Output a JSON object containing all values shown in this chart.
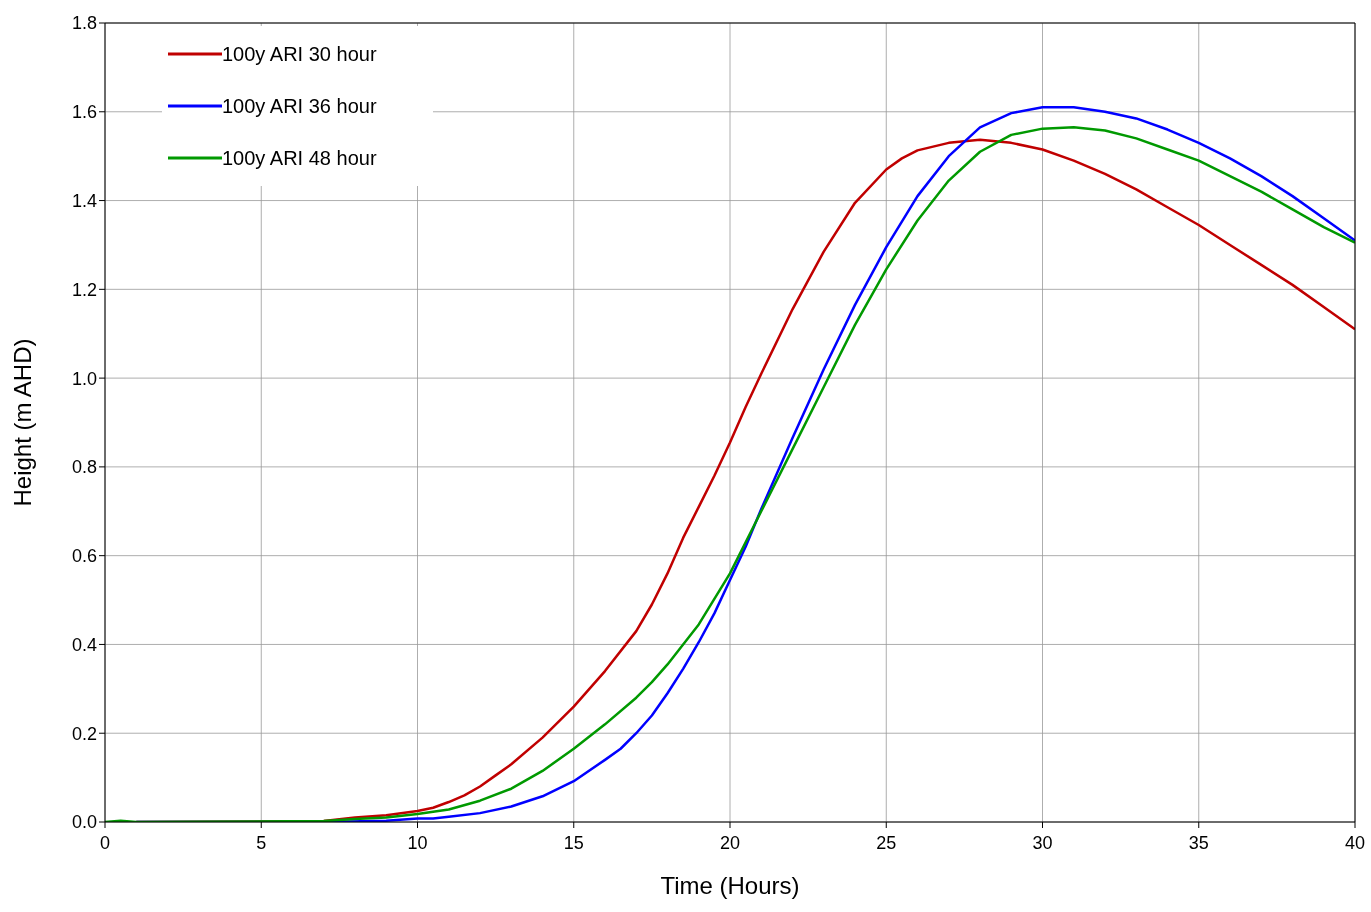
{
  "chart_data": {
    "type": "line",
    "xlabel": "Time (Hours)",
    "ylabel": "Height (m AHD)",
    "xlim": [
      0,
      40
    ],
    "xticks": [
      0,
      5,
      10,
      15,
      20,
      25,
      30,
      35,
      40
    ],
    "ylim": [
      0,
      1.8
    ],
    "yticks": [
      {
        "value": 0,
        "label": "0.0"
      },
      {
        "value": 0.2,
        "label": "0.2"
      },
      {
        "value": 0.4,
        "label": "0.4"
      },
      {
        "value": 0.6,
        "label": "0.6"
      },
      {
        "value": 0.8,
        "label": "0.8"
      },
      {
        "value": 1.0,
        "label": "1.0"
      },
      {
        "value": 1.2,
        "label": "1.2"
      },
      {
        "value": 1.4,
        "label": "1.4"
      },
      {
        "value": 1.6,
        "label": "1.6"
      },
      {
        "value": 1.8,
        "label": "1.8"
      }
    ],
    "grid": true,
    "legend": "top left",
    "marker": "none",
    "line_style": "solid",
    "series": [
      {
        "name": "100y ARI 30 hour",
        "color": "#c00000",
        "x": [
          1,
          7,
          8,
          9,
          10,
          10.5,
          11,
          11.5,
          12,
          12.5,
          13,
          14,
          15,
          16,
          17,
          17.5,
          18,
          18.5,
          19,
          19.5,
          20,
          20.5,
          21,
          22,
          23,
          24,
          25,
          25.5,
          26,
          27,
          28,
          29,
          30,
          31,
          32,
          33,
          34,
          35,
          36,
          37,
          38,
          39,
          40
        ],
        "values": [
          0,
          0.002,
          0.01,
          0.015,
          0.025,
          0.032,
          0.045,
          0.06,
          0.08,
          0.105,
          0.13,
          0.19,
          0.26,
          0.34,
          0.43,
          0.49,
          0.56,
          0.64,
          0.71,
          0.78,
          0.855,
          0.935,
          1.01,
          1.155,
          1.285,
          1.395,
          1.47,
          1.495,
          1.513,
          1.53,
          1.537,
          1.53,
          1.515,
          1.49,
          1.46,
          1.425,
          1.385,
          1.345,
          1.3,
          1.255,
          1.21,
          1.16,
          1.11
        ]
      },
      {
        "name": "100y ARI 36 hour",
        "color": "#0000ff",
        "x": [
          1,
          7,
          9,
          10,
          10.5,
          11,
          12,
          13,
          14,
          15,
          16,
          16.5,
          17,
          17.5,
          18,
          18.5,
          19,
          19.5,
          20,
          20.5,
          21,
          22,
          23,
          24,
          25,
          26,
          27,
          28,
          29,
          30,
          31,
          32,
          33,
          34,
          35,
          36,
          37,
          38,
          39,
          40
        ],
        "values": [
          0,
          0,
          0.003,
          0.008,
          0.008,
          0.012,
          0.02,
          0.035,
          0.058,
          0.092,
          0.14,
          0.165,
          0.2,
          0.24,
          0.29,
          0.345,
          0.405,
          0.47,
          0.545,
          0.62,
          0.705,
          0.865,
          1.02,
          1.165,
          1.295,
          1.41,
          1.5,
          1.565,
          1.597,
          1.61,
          1.61,
          1.6,
          1.585,
          1.56,
          1.53,
          1.495,
          1.455,
          1.41,
          1.36,
          1.31
        ]
      },
      {
        "name": "100y ARI 48 hour",
        "color": "#009900",
        "x": [
          0,
          0.5,
          1,
          7,
          8,
          9,
          10,
          11,
          12,
          13,
          14,
          15,
          16,
          17,
          17.5,
          18,
          19,
          20,
          21,
          22,
          23,
          24,
          25,
          26,
          27,
          28,
          29,
          30,
          31,
          32,
          33,
          34,
          35,
          36,
          37,
          38,
          39,
          40
        ],
        "values": [
          0,
          0.003,
          0,
          0.002,
          0.007,
          0.01,
          0.018,
          0.028,
          0.048,
          0.075,
          0.115,
          0.165,
          0.22,
          0.28,
          0.315,
          0.355,
          0.445,
          0.56,
          0.7,
          0.84,
          0.98,
          1.12,
          1.245,
          1.355,
          1.445,
          1.51,
          1.548,
          1.562,
          1.565,
          1.558,
          1.54,
          1.515,
          1.49,
          1.455,
          1.42,
          1.38,
          1.34,
          1.305
        ]
      }
    ]
  }
}
